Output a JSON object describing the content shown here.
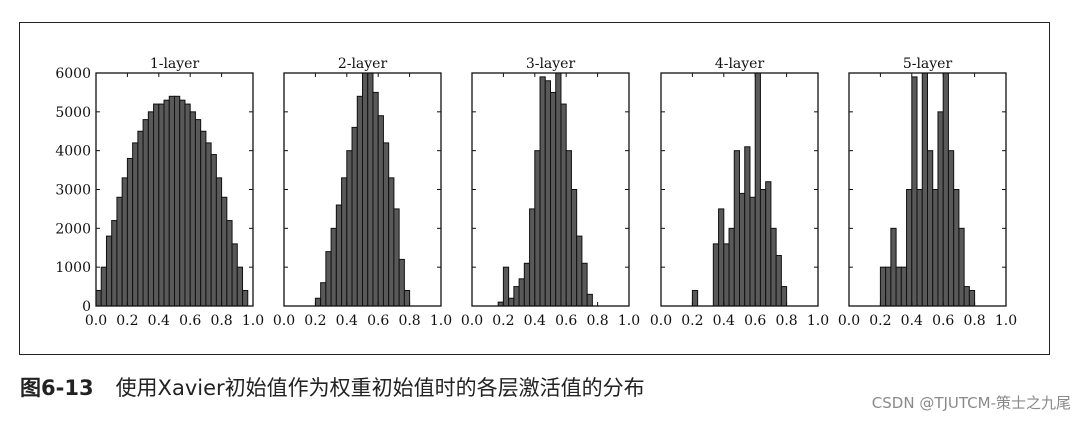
{
  "caption": {
    "figure_label": "图6-13",
    "text": "使用Xavier初始值作为权重初始值时的各层激活值的分布"
  },
  "watermark": "CSDN @TJUTCM-策士之九尾",
  "chart_data": [
    {
      "type": "bar",
      "title": "1-layer",
      "bins": 30,
      "xlim": [
        0,
        1
      ],
      "ylim": [
        0,
        6000
      ],
      "xticks": [
        "0.0",
        "0.2",
        "0.4",
        "0.6",
        "0.8",
        "1.0"
      ],
      "yticks": [
        "0",
        "1000",
        "2000",
        "3000",
        "4000",
        "5000",
        "6000"
      ],
      "values": [
        400,
        1000,
        1800,
        2200,
        2800,
        3300,
        3800,
        4200,
        4500,
        4800,
        5000,
        5200,
        5200,
        5300,
        5400,
        5400,
        5300,
        5200,
        5000,
        4800,
        4500,
        4200,
        3900,
        3300,
        2800,
        2200,
        1600,
        1000,
        400,
        0
      ]
    },
    {
      "type": "bar",
      "title": "2-layer",
      "bins": 30,
      "xlim": [
        0,
        1
      ],
      "ylim": [
        0,
        6000
      ],
      "xticks": [
        "0.0",
        "0.2",
        "0.4",
        "0.6",
        "0.8",
        "1.0"
      ],
      "values": [
        0,
        0,
        0,
        0,
        0,
        0,
        200,
        600,
        1400,
        2000,
        2600,
        3300,
        4000,
        4600,
        5400,
        6000,
        6000,
        5500,
        4900,
        4200,
        3300,
        2500,
        1200,
        400,
        0,
        0,
        0,
        0,
        0,
        0
      ]
    },
    {
      "type": "bar",
      "title": "3-layer",
      "bins": 30,
      "xlim": [
        0,
        1
      ],
      "ylim": [
        0,
        6000
      ],
      "xticks": [
        "0.0",
        "0.2",
        "0.4",
        "0.6",
        "0.8",
        "1.0"
      ],
      "values": [
        0,
        0,
        0,
        0,
        0,
        100,
        1000,
        200,
        500,
        700,
        1100,
        2500,
        4000,
        5900,
        5800,
        5500,
        6000,
        5200,
        4000,
        3000,
        1800,
        1100,
        300,
        0,
        0,
        0,
        0,
        0,
        0,
        0
      ]
    },
    {
      "type": "bar",
      "title": "4-layer",
      "bins": 30,
      "xlim": [
        0,
        1
      ],
      "ylim": [
        0,
        6000
      ],
      "xticks": [
        "0.0",
        "0.2",
        "0.4",
        "0.6",
        "0.8",
        "1.0"
      ],
      "values": [
        0,
        0,
        0,
        0,
        0,
        0,
        400,
        0,
        0,
        0,
        1600,
        2500,
        1600,
        2000,
        4000,
        2900,
        4100,
        2800,
        6000,
        3000,
        3200,
        2000,
        1300,
        500,
        0,
        0,
        0,
        0,
        0,
        0
      ]
    },
    {
      "type": "bar",
      "title": "5-layer",
      "bins": 30,
      "xlim": [
        0,
        1
      ],
      "ylim": [
        0,
        6000
      ],
      "xticks": [
        "0.0",
        "0.2",
        "0.4",
        "0.6",
        "0.8",
        "1.0"
      ],
      "values": [
        0,
        0,
        0,
        0,
        0,
        0,
        1000,
        1000,
        2000,
        1000,
        1000,
        3000,
        5900,
        3000,
        6000,
        4000,
        3000,
        5000,
        6000,
        4000,
        3000,
        2000,
        500,
        400,
        0,
        0,
        0,
        0,
        0,
        0
      ]
    }
  ]
}
